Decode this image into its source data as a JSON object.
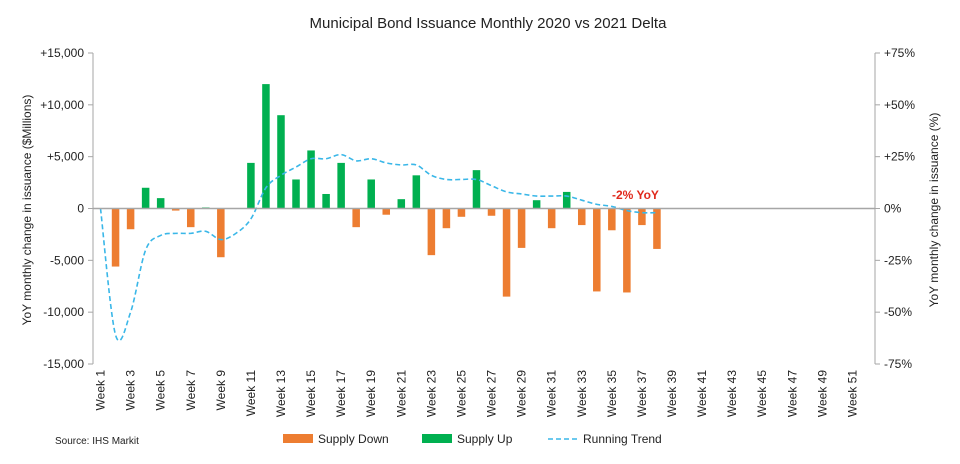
{
  "chart_data": {
    "type": "bar",
    "title": "Municipal Bond Issuance Monthly 2020 vs 2021 Delta",
    "ylabel": "YoY monthly change in issuance ($Millions)",
    "y2label": "YoY monthly change in issuance (%)",
    "ylim": [
      -15000,
      15000
    ],
    "y2lim": [
      -75,
      75
    ],
    "yticks": [
      {
        "value": 15000,
        "label": "+15,000"
      },
      {
        "value": 10000,
        "label": "+10,000"
      },
      {
        "value": 5000,
        "label": "+5,000"
      },
      {
        "value": 0,
        "label": "0"
      },
      {
        "value": -5000,
        "label": "-5,000"
      },
      {
        "value": -10000,
        "label": "-10,000"
      },
      {
        "value": -15000,
        "label": "-15,000"
      }
    ],
    "y2ticks": [
      {
        "value": 75,
        "label": "+75%"
      },
      {
        "value": 50,
        "label": "+50%"
      },
      {
        "value": 25,
        "label": "+25%"
      },
      {
        "value": 0,
        "label": "0%"
      },
      {
        "value": -25,
        "label": "-25%"
      },
      {
        "value": -50,
        "label": "-50%"
      },
      {
        "value": -75,
        "label": "-75%"
      }
    ],
    "weeks": 52,
    "xtick_labels": [
      "Week 1",
      "Week 3",
      "Week 5",
      "Week 7",
      "Week 9",
      "Week 11",
      "Week 13",
      "Week 15",
      "Week 17",
      "Week 19",
      "Week 21",
      "Week 23",
      "Week 25",
      "Week 27",
      "Week 29",
      "Week 31",
      "Week 33",
      "Week 35",
      "Week 37",
      "Week 39",
      "Week 41",
      "Week 43",
      "Week 45",
      "Week 47",
      "Week 49",
      "Week 51"
    ],
    "xtick_weeks": [
      1,
      3,
      5,
      7,
      9,
      11,
      13,
      15,
      17,
      19,
      21,
      23,
      25,
      27,
      29,
      31,
      33,
      35,
      37,
      39,
      41,
      43,
      45,
      47,
      49,
      51
    ],
    "bar_values": [
      0,
      -5600,
      -2000,
      2000,
      1000,
      -200,
      -1800,
      100,
      -4700,
      0,
      4400,
      12000,
      9000,
      2800,
      5600,
      1400,
      4400,
      -1800,
      2800,
      -600,
      900,
      3200,
      -4500,
      -1900,
      -800,
      3700,
      -700,
      -8500,
      -3800,
      800,
      -1900,
      1600,
      -1600,
      -8000,
      -2100,
      -8100,
      -1600,
      -3900
    ],
    "trend_values": [
      0,
      -61,
      -50,
      -20,
      -13,
      -12,
      -12,
      -11,
      -15,
      -12,
      -5,
      10,
      16,
      20,
      24,
      24,
      26,
      23,
      24,
      22,
      21,
      21,
      16,
      14,
      14,
      14,
      11,
      8,
      7,
      6,
      6,
      6,
      4,
      2,
      1,
      -1,
      -2,
      -2
    ],
    "annotation": {
      "text": "-2% YoY",
      "week": 37,
      "value": 2800
    },
    "legend": [
      {
        "name": "Supply Down",
        "color": "#ed7d31",
        "kind": "bar"
      },
      {
        "name": "Supply Up",
        "color": "#00b050",
        "kind": "bar"
      },
      {
        "name": "Running Trend",
        "color": "#3ab7e8",
        "kind": "dashed-line"
      }
    ],
    "source": "Source: IHS Markit",
    "grid": false,
    "legend_position": "bottom",
    "colors": {
      "down": "#ed7d31",
      "up": "#00b050",
      "trend": "#3ab7e8",
      "axis": "#a6a6a6"
    }
  }
}
